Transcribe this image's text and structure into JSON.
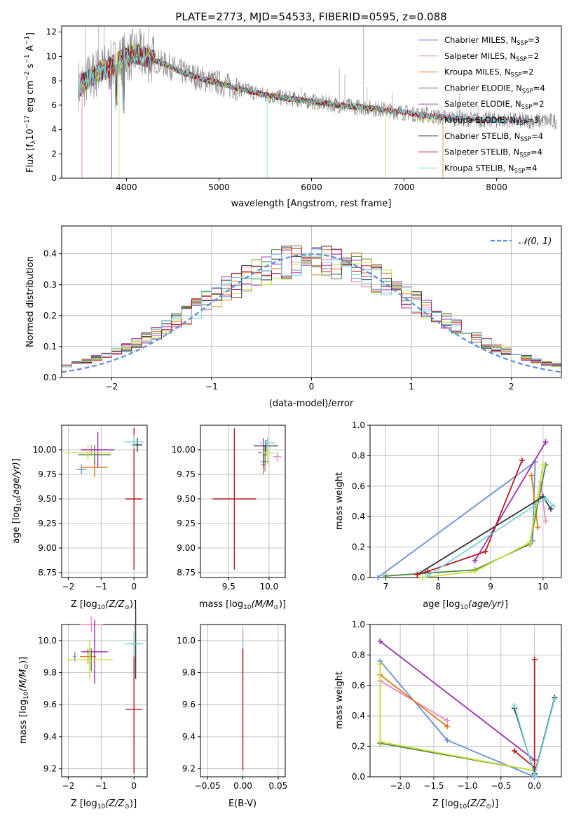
{
  "spectrum": {
    "title": "PLATE=2773, MJD=54533, FIBERID=0595, z=0.088",
    "xlabel": "wavelength [Angstrom, rest frame]",
    "ylabel": "Flux [f",
    "ylabel_unit": "10",
    "ylabel_tail": "erg cm",
    "ylabel_s": "s",
    "ylabel_A": "A",
    "legend": [
      {
        "name": "Chabrier MILES, N",
        "n": "3",
        "color": "#6a8fd8"
      },
      {
        "name": "Salpeter MILES, N",
        "n": "2",
        "color": "#e88cc0"
      },
      {
        "name": "Kroupa MILES, N",
        "n": "2",
        "color": "#e07b22"
      },
      {
        "name": "Chabrier ELODIE, N",
        "n": "4",
        "color": "#4f8a3f"
      },
      {
        "name": "Salpeter ELODIE, N",
        "n": "2",
        "color": "#9a2fb0"
      },
      {
        "name": "Kroupa ELODIE, N",
        "n": "3",
        "color": "#c8e03a"
      },
      {
        "name": "Chabrier STELIB, N",
        "n": "4",
        "color": "#333333"
      },
      {
        "name": "Salpeter STELIB, N",
        "n": "4",
        "color": "#b5181e"
      },
      {
        "name": "Kroupa STELIB, N",
        "n": "4",
        "color": "#78d5e0"
      }
    ]
  },
  "residuals": {
    "xlabel": "(data-model)/error",
    "ylabel": "Normed distribution",
    "legend": "𝒩(0, 1)"
  },
  "panels": {
    "age_vs_Z": {
      "xlabel": "Z [log",
      "ylabel": "age  [log"
    },
    "age_vs_mass": {
      "xlabel": "mass [log"
    },
    "weight_vs_age": {
      "xlabel": "age  [log",
      "ylabel": "mass weight"
    },
    "mass_vs_Z": {
      "xlabel": "Z [log",
      "ylabel": "mass [log"
    },
    "mass_vs_ebv": {
      "xlabel": "E(B-V)"
    },
    "weight_vs_Z": {
      "xlabel": "Z [log",
      "ylabel": "mass weight"
    }
  },
  "chart_data": [
    {
      "type": "line",
      "title": "PLATE=2773, MJD=54533, FIBERID=0595, z=0.088",
      "xlim": [
        3300,
        8700
      ],
      "ylim": [
        0,
        12.5
      ],
      "xticks": [
        4000,
        5000,
        6000,
        7000,
        8000
      ],
      "yticks": [
        0,
        2,
        4,
        6,
        8,
        10,
        12
      ],
      "continuum": {
        "x": [
          3500,
          3600,
          3700,
          3800,
          3900,
          4000,
          4100,
          4200,
          4400,
          4600,
          4800,
          5000,
          5200,
          5400,
          5600,
          5800,
          6000,
          6200,
          6400,
          6600,
          6800,
          7000,
          7200,
          7400,
          7600,
          7800,
          8000,
          8200,
          8400
        ],
        "y": [
          7.6,
          8.2,
          8.8,
          9.0,
          9.5,
          10.0,
          10.2,
          10.0,
          9.4,
          8.7,
          8.2,
          7.8,
          7.4,
          7.0,
          6.7,
          6.5,
          6.3,
          6.1,
          5.9,
          5.8,
          5.6,
          5.4,
          5.2,
          5.0,
          4.9,
          4.8,
          4.8,
          4.75,
          4.7
        ]
      }
    },
    {
      "type": "bar",
      "xlim": [
        -2.5,
        2.5
      ],
      "ylim": [
        0,
        0.49
      ],
      "xticks": [
        -2,
        -1,
        0,
        1,
        2
      ],
      "yticks": [
        0.0,
        0.1,
        0.2,
        0.3,
        0.4
      ],
      "bin_width": 0.1,
      "gaussian": {
        "mu": 0,
        "sigma": 1
      }
    },
    {
      "type": "scatter",
      "name": "age_vs_Z",
      "xlim": [
        -2.2,
        0.4
      ],
      "ylim": [
        8.7,
        10.25
      ],
      "xticks": [
        -2,
        -1,
        0
      ],
      "yticks": [
        8.75,
        9.0,
        9.25,
        9.5,
        9.75,
        10.0
      ],
      "points": [
        {
          "x": -1.6,
          "y": 9.8,
          "xerr": 0.15,
          "yerr": 0.05,
          "c": "#6a8fd8"
        },
        {
          "x": -1.3,
          "y": 10.0,
          "xerr": 0.35,
          "yerr": 0.05,
          "c": "#e88cc0"
        },
        {
          "x": -1.2,
          "y": 9.82,
          "xerr": 0.4,
          "yerr": 0.1,
          "c": "#e07b22"
        },
        {
          "x": -1.2,
          "y": 9.95,
          "xerr": 0.5,
          "yerr": 0.1,
          "c": "#4f8a3f"
        },
        {
          "x": -1.1,
          "y": 10.0,
          "xerr": 0.5,
          "yerr": 0.18,
          "c": "#9a2fb0"
        },
        {
          "x": -1.4,
          "y": 9.97,
          "xerr": 0.7,
          "yerr": 0.08,
          "c": "#c8e03a"
        },
        {
          "x": 0.1,
          "y": 10.05,
          "xerr": 0.15,
          "yerr": 0.07,
          "c": "#333333"
        },
        {
          "x": 0.0,
          "y": 9.5,
          "xerr": 0.25,
          "yerr": 0.72,
          "c": "#b5181e"
        },
        {
          "x": 0.0,
          "y": 10.08,
          "xerr": 0.3,
          "yerr": 0.07,
          "c": "#78d5e0"
        }
      ]
    },
    {
      "type": "scatter",
      "name": "age_vs_mass",
      "xlim": [
        9.15,
        10.2
      ],
      "ylim": [
        8.7,
        10.25
      ],
      "xticks": [
        9.5,
        10.0
      ],
      "yticks": [
        8.75,
        9.0,
        9.25,
        9.5,
        9.75,
        10.0
      ],
      "points": [
        {
          "x": 9.95,
          "y": 9.88,
          "xerr": 0.05,
          "yerr": 0.1,
          "c": "#6a8fd8"
        },
        {
          "x": 10.1,
          "y": 9.93,
          "xerr": 0.05,
          "yerr": 0.05,
          "c": "#e88cc0"
        },
        {
          "x": 9.93,
          "y": 9.85,
          "xerr": 0.03,
          "yerr": 0.1,
          "c": "#e07b22"
        },
        {
          "x": 9.95,
          "y": 9.95,
          "xerr": 0.03,
          "yerr": 0.1,
          "c": "#4f8a3f"
        },
        {
          "x": 9.93,
          "y": 9.97,
          "xerr": 0.06,
          "yerr": 0.15,
          "c": "#9a2fb0"
        },
        {
          "x": 9.98,
          "y": 9.97,
          "xerr": 0.08,
          "yerr": 0.12,
          "c": "#c8e03a"
        },
        {
          "x": 9.96,
          "y": 10.04,
          "xerr": 0.15,
          "yerr": 0.06,
          "c": "#333333"
        },
        {
          "x": 9.57,
          "y": 9.5,
          "xerr": 0.27,
          "yerr": 0.72,
          "c": "#b5181e"
        },
        {
          "x": 9.98,
          "y": 10.07,
          "xerr": 0.1,
          "yerr": 0.06,
          "c": "#78d5e0"
        }
      ]
    },
    {
      "type": "line",
      "name": "weight_vs_age",
      "xlim": [
        6.7,
        10.35
      ],
      "ylim": [
        0,
        1.0
      ],
      "xticks": [
        7,
        8,
        9,
        10
      ],
      "yticks": [
        0.0,
        0.2,
        0.4,
        0.6,
        0.8,
        1.0
      ],
      "series": [
        {
          "c": "#6a8fd8",
          "x": [
            6.85,
            9.85,
            9.8
          ],
          "y": [
            0.0,
            0.76,
            0.24
          ]
        },
        {
          "c": "#e88cc0",
          "x": [
            9.95,
            10.05
          ],
          "y": [
            0.63,
            0.37
          ]
        },
        {
          "c": "#e07b22",
          "x": [
            9.78,
            9.9
          ],
          "y": [
            0.67,
            0.33
          ]
        },
        {
          "c": "#4f8a3f",
          "x": [
            7.0,
            8.7,
            9.75,
            10.05
          ],
          "y": [
            0.01,
            0.05,
            0.22,
            0.74
          ]
        },
        {
          "c": "#9a2fb0",
          "x": [
            8.7,
            10.05
          ],
          "y": [
            0.11,
            0.89
          ]
        },
        {
          "c": "#c8e03a",
          "x": [
            7.7,
            8.7,
            9.75,
            10.0
          ],
          "y": [
            0.0,
            0.04,
            0.23,
            0.74
          ]
        },
        {
          "c": "#333333",
          "x": [
            7.6,
            10.0,
            10.15
          ],
          "y": [
            0.02,
            0.53,
            0.45
          ]
        },
        {
          "c": "#b5181e",
          "x": [
            7.6,
            7.8,
            8.9,
            9.6
          ],
          "y": [
            0.02,
            0.04,
            0.17,
            0.77
          ]
        },
        {
          "c": "#78d5e0",
          "x": [
            7.8,
            10.05,
            10.2
          ],
          "y": [
            0.01,
            0.52,
            0.47
          ]
        }
      ]
    },
    {
      "type": "scatter",
      "name": "mass_vs_Z",
      "xlim": [
        -2.2,
        0.4
      ],
      "ylim": [
        9.15,
        10.1
      ],
      "xticks": [
        -2,
        -1,
        0
      ],
      "yticks": [
        9.2,
        9.4,
        9.6,
        9.8,
        10.0
      ],
      "points": [
        {
          "x": -1.8,
          "y": 9.9,
          "xerr": 0.05,
          "yerr": 0.03,
          "c": "#6a8fd8"
        },
        {
          "x": -1.3,
          "y": 10.1,
          "xerr": 0.35,
          "yerr": 0.05,
          "c": "#e88cc0"
        },
        {
          "x": -1.4,
          "y": 9.9,
          "xerr": 0.25,
          "yerr": 0.05,
          "c": "#e07b22"
        },
        {
          "x": -1.3,
          "y": 9.88,
          "xerr": 0.3,
          "yerr": 0.07,
          "c": "#4f8a3f"
        },
        {
          "x": -1.2,
          "y": 9.93,
          "xerr": 0.4,
          "yerr": 0.2,
          "c": "#9a2fb0"
        },
        {
          "x": -1.35,
          "y": 9.88,
          "xerr": 0.7,
          "yerr": 0.12,
          "c": "#c8e03a"
        },
        {
          "x": 0.05,
          "y": 9.98,
          "xerr": 0.15,
          "yerr": 0.22,
          "c": "#333333"
        },
        {
          "x": 0.0,
          "y": 9.57,
          "xerr": 0.25,
          "yerr": 0.4,
          "c": "#b5181e"
        },
        {
          "x": 0.0,
          "y": 9.98,
          "xerr": 0.3,
          "yerr": 0.08,
          "c": "#78d5e0"
        }
      ]
    },
    {
      "type": "scatter",
      "name": "mass_vs_ebv",
      "xlim": [
        -0.06,
        0.06
      ],
      "ylim": [
        9.15,
        10.1
      ],
      "xticks": [
        -0.05,
        0.0,
        0.05
      ],
      "yticks": [
        9.2,
        9.4,
        9.6,
        9.8,
        10.0
      ],
      "points": [
        {
          "x": 0.0,
          "y": 9.95,
          "xerr": 0,
          "yerr": 0.12,
          "c": "#e88cc0"
        },
        {
          "x": 0.0,
          "y": 9.9,
          "xerr": 0,
          "yerr": 0.1,
          "c": "#78d5e0"
        },
        {
          "x": 0.0,
          "y": 9.57,
          "xerr": 0,
          "yerr": 0.38,
          "c": "#b5181e"
        }
      ]
    },
    {
      "type": "line",
      "name": "weight_vs_Z",
      "xlim": [
        -2.45,
        0.4
      ],
      "ylim": [
        0,
        1.0
      ],
      "xticks": [
        -2.0,
        -1.5,
        -1.0,
        -0.5,
        0.0
      ],
      "yticks": [
        0.0,
        0.2,
        0.4,
        0.6,
        0.8,
        1.0
      ],
      "series": [
        {
          "c": "#6a8fd8",
          "x": [
            -2.3,
            -1.3,
            0.0
          ],
          "y": [
            0.76,
            0.24,
            0.0
          ]
        },
        {
          "c": "#e88cc0",
          "x": [
            -2.3,
            -1.3
          ],
          "y": [
            0.63,
            0.37
          ]
        },
        {
          "c": "#e07b22",
          "x": [
            -2.3,
            -1.3
          ],
          "y": [
            0.67,
            0.33
          ]
        },
        {
          "c": "#4f8a3f",
          "x": [
            -2.3,
            -2.3,
            0.0,
            0.0
          ],
          "y": [
            0.74,
            0.22,
            0.04,
            0.01
          ]
        },
        {
          "c": "#9a2fb0",
          "x": [
            -2.3,
            0.0
          ],
          "y": [
            0.89,
            0.11
          ]
        },
        {
          "c": "#c8e03a",
          "x": [
            -2.3,
            -2.3,
            0.0
          ],
          "y": [
            0.74,
            0.23,
            0.04
          ]
        },
        {
          "c": "#333333",
          "x": [
            -0.3,
            0.0,
            0.3
          ],
          "y": [
            0.45,
            0.02,
            0.52
          ]
        },
        {
          "c": "#b5181e",
          "x": [
            -0.3,
            0.0,
            0.0
          ],
          "y": [
            0.17,
            0.06,
            0.77
          ]
        },
        {
          "c": "#78d5e0",
          "x": [
            -0.3,
            0.0,
            0.3
          ],
          "y": [
            0.47,
            0.01,
            0.51
          ]
        }
      ]
    }
  ]
}
